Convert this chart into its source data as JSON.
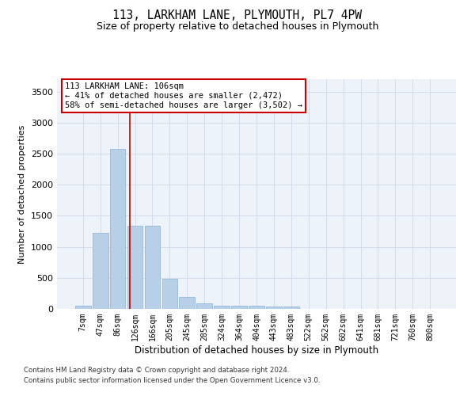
{
  "title": "113, LARKHAM LANE, PLYMOUTH, PL7 4PW",
  "subtitle": "Size of property relative to detached houses in Plymouth",
  "xlabel": "Distribution of detached houses by size in Plymouth",
  "ylabel": "Number of detached properties",
  "categories": [
    "7sqm",
    "47sqm",
    "86sqm",
    "126sqm",
    "166sqm",
    "205sqm",
    "245sqm",
    "285sqm",
    "324sqm",
    "364sqm",
    "404sqm",
    "443sqm",
    "483sqm",
    "522sqm",
    "562sqm",
    "602sqm",
    "641sqm",
    "681sqm",
    "721sqm",
    "760sqm",
    "800sqm"
  ],
  "values": [
    55,
    1225,
    2580,
    1340,
    1340,
    490,
    195,
    95,
    55,
    55,
    55,
    40,
    40,
    0,
    0,
    0,
    0,
    0,
    0,
    0,
    0
  ],
  "bar_color": "#b8cfe8",
  "bar_edge_color": "#8ab0d4",
  "background_color": "#eef2f9",
  "grid_color": "#d0d8e8",
  "property_line_x": 2.72,
  "property_line_color": "#cc0000",
  "annotation_text": "113 LARKHAM LANE: 106sqm\n← 41% of detached houses are smaller (2,472)\n58% of semi-detached houses are larger (3,502) →",
  "annotation_box_color": "#ffffff",
  "annotation_box_edge": "#cc0000",
  "ylim": [
    0,
    3700
  ],
  "yticks": [
    0,
    500,
    1000,
    1500,
    2000,
    2500,
    3000,
    3500
  ],
  "footer_line1": "Contains HM Land Registry data © Crown copyright and database right 2024.",
  "footer_line2": "Contains public sector information licensed under the Open Government Licence v3.0."
}
